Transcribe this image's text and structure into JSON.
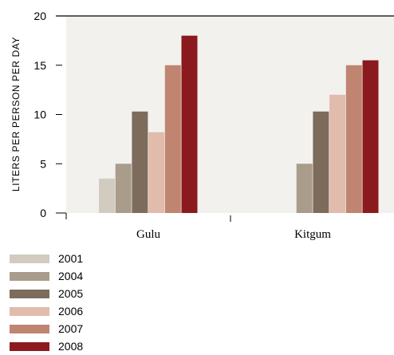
{
  "chart_data": {
    "type": "bar",
    "title": "",
    "xlabel": "",
    "ylabel": "LITERS PER PERSON PER DAY",
    "ylim": [
      0,
      20
    ],
    "yticks": [
      0,
      5,
      10,
      15,
      20
    ],
    "grid": false,
    "legend_position": "bottom-left",
    "plot_background": "#f2f1ee",
    "categories": [
      "Gulu",
      "Kitgum"
    ],
    "series": [
      {
        "name": "2001",
        "color": "#d2cbc0",
        "values": [
          3.5,
          null
        ]
      },
      {
        "name": "2004",
        "color": "#aa9c8b",
        "values": [
          5.0,
          5.0
        ]
      },
      {
        "name": "2005",
        "color": "#7d6c5c",
        "values": [
          10.3,
          10.3
        ]
      },
      {
        "name": "2006",
        "color": "#e1bbab",
        "values": [
          8.2,
          12.0
        ]
      },
      {
        "name": "2007",
        "color": "#bf8570",
        "values": [
          15.0,
          15.0
        ]
      },
      {
        "name": "2008",
        "color": "#8b1a1e",
        "values": [
          18.0,
          15.5
        ]
      }
    ]
  }
}
